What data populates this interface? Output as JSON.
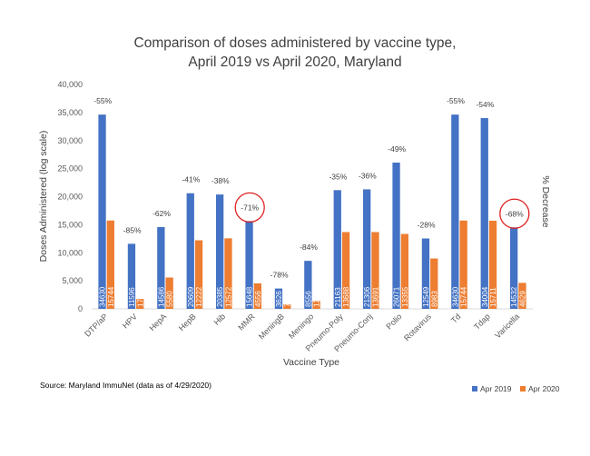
{
  "chart_data": {
    "type": "bar",
    "title_line1": "Comparison of doses administered by vaccine type,",
    "title_line2": "April 2019 vs April 2020, Maryland",
    "xlabel": "Vaccine Type",
    "ylabel": "Doses Administered (log scale)",
    "secondary_ylabel": "% Decrease",
    "ylim": [
      0,
      40000
    ],
    "yticks": [
      "0",
      "5,000",
      "10,000",
      "15,000",
      "20,000",
      "25,000",
      "30,000",
      "35,000",
      "40,000"
    ],
    "categories": [
      "DTP/aP",
      "HPV",
      "HepA",
      "HepB",
      "Hib",
      "MMR",
      "MeningB",
      "Meningo",
      "Pneumo-Poly",
      "Pneumo-Conj",
      "Polio",
      "Rotavirus",
      "Td",
      "Tdap",
      "Varicella"
    ],
    "series": [
      {
        "name": "Apr 2019",
        "color": "#4472C4",
        "values": [
          34630,
          11596,
          14586,
          20609,
          20385,
          15648,
          3626,
          8556,
          21163,
          21306,
          26071,
          12549,
          34630,
          34004,
          14532
        ],
        "labels": [
          "34630",
          "11596",
          "14586",
          "20609",
          "20385",
          "15648",
          "3626",
          "8556",
          "21163",
          "21306",
          "26071",
          "12549",
          "34630",
          "34004",
          "14532"
        ]
      },
      {
        "name": "Apr 2020",
        "color": "#ED7D31",
        "values": [
          15744,
          1759,
          5580,
          12222,
          12572,
          4556,
          792,
          1394,
          13688,
          13691,
          13355,
          8983,
          15744,
          15711,
          4629
        ],
        "labels": [
          "15744",
          "1759",
          "5580",
          "12222",
          "12572",
          "4556",
          "792",
          "1394",
          "13688",
          "13691",
          "13355",
          "8983",
          "15744",
          "15711",
          "4629"
        ]
      }
    ],
    "percent_decrease": [
      "-55%",
      "-85%",
      "-62%",
      "-41%",
      "-38%",
      "-71%",
      "-78%",
      "-84%",
      "-35%",
      "-36%",
      "-49%",
      "-28%",
      "-55%",
      "-54%",
      "-68%"
    ],
    "circled": [
      "MMR",
      "Varicella"
    ],
    "circle_color": "#E02020",
    "legend_position": "bottom-right",
    "grid": false
  },
  "source_note": "Source: Maryland ImmuNet (data as of 4/29/2020)"
}
